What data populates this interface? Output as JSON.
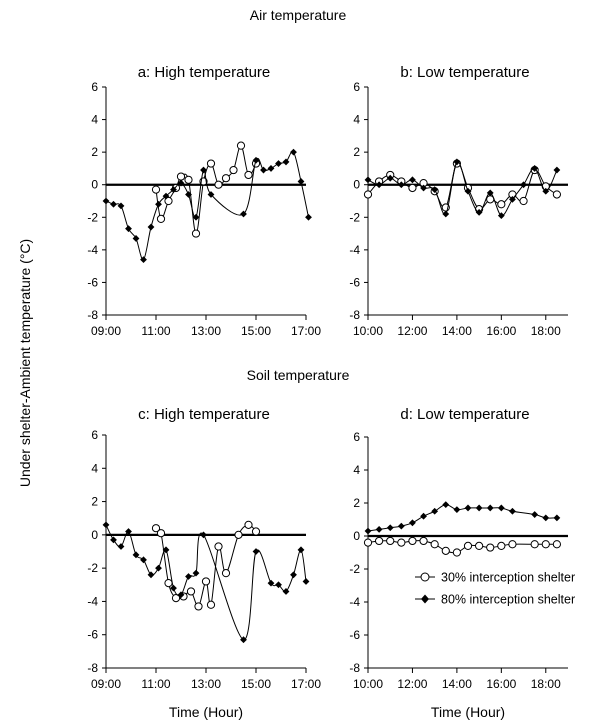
{
  "figure": {
    "section_titles": [
      "Air temperature",
      "Soil temperature"
    ],
    "ylabel": "Under shelter-Ambient temperature (°C)",
    "xlabel": "Time (Hour)"
  },
  "legend": {
    "entries": [
      {
        "label": "30% interception shelter",
        "marker": "open-circle"
      },
      {
        "label": "80% interception shelter",
        "marker": "filled-diamond"
      }
    ]
  },
  "chart_data": [
    {
      "type": "line",
      "title": "a: High temperature",
      "ylim": [
        -8,
        6
      ],
      "yticks": [
        6,
        4,
        2,
        0,
        -2,
        -4,
        -6,
        -8
      ],
      "xlim": [
        9,
        17
      ],
      "xticks": [
        "09:00",
        "11:00",
        "13:00",
        "15:00",
        "17:00"
      ],
      "series": [
        {
          "name": "30% interception shelter",
          "marker": "open-circle",
          "x": [
            11.0,
            11.2,
            11.5,
            11.8,
            12.0,
            12.3,
            12.6,
            12.9,
            13.2,
            13.5,
            13.8,
            14.1,
            14.4,
            14.7,
            15.0
          ],
          "y": [
            -0.3,
            -2.1,
            -1.0,
            -0.2,
            0.5,
            0.3,
            -3.0,
            0.2,
            1.3,
            0.0,
            0.4,
            0.9,
            2.4,
            0.6,
            1.3
          ]
        },
        {
          "name": "80% interception shelter",
          "marker": "filled-diamond",
          "x": [
            9.0,
            9.3,
            9.6,
            9.9,
            10.2,
            10.5,
            10.8,
            11.1,
            11.4,
            11.7,
            12.0,
            12.3,
            12.6,
            12.9,
            13.2,
            14.5,
            15.0,
            15.3,
            15.6,
            15.9,
            16.2,
            16.5,
            16.8,
            17.1
          ],
          "y": [
            -1.0,
            -1.2,
            -1.3,
            -2.7,
            -3.3,
            -4.6,
            -2.6,
            -1.2,
            -0.7,
            -0.3,
            0.1,
            -0.6,
            -2.0,
            0.9,
            -0.6,
            -1.8,
            1.5,
            0.9,
            1.0,
            1.3,
            1.4,
            2.0,
            0.2,
            -2.0
          ]
        }
      ]
    },
    {
      "type": "line",
      "title": "b: Low temperature",
      "ylim": [
        -8,
        6
      ],
      "yticks": [
        6,
        4,
        2,
        0,
        -2,
        -4,
        -6,
        -8
      ],
      "xlim": [
        10,
        19
      ],
      "xticks": [
        "10:00",
        "12:00",
        "14:00",
        "16:00",
        "18:00"
      ],
      "series": [
        {
          "name": "30% interception shelter",
          "marker": "open-circle",
          "x": [
            10.0,
            10.5,
            11.0,
            11.5,
            12.0,
            12.5,
            13.0,
            13.5,
            14.0,
            14.5,
            15.0,
            15.5,
            16.0,
            16.5,
            17.0,
            17.5,
            18.0,
            18.5
          ],
          "y": [
            -0.6,
            0.2,
            0.6,
            0.2,
            -0.2,
            0.1,
            -0.4,
            -1.4,
            1.3,
            -0.2,
            -1.5,
            -0.9,
            -1.2,
            -0.6,
            -1.0,
            0.9,
            -0.1,
            -0.6
          ]
        },
        {
          "name": "80% interception shelter",
          "marker": "filled-diamond",
          "x": [
            10.0,
            10.5,
            11.0,
            11.5,
            12.0,
            12.5,
            13.0,
            13.5,
            14.0,
            14.5,
            15.0,
            15.5,
            16.0,
            16.5,
            17.0,
            17.5,
            18.0,
            18.5
          ],
          "y": [
            0.3,
            0.0,
            0.4,
            0.0,
            0.3,
            -0.2,
            -0.3,
            -1.8,
            1.4,
            -0.4,
            -1.7,
            -0.5,
            -1.9,
            -0.9,
            0.0,
            1.0,
            -0.4,
            0.9
          ]
        }
      ]
    },
    {
      "type": "line",
      "title": "c: High temperature",
      "ylim": [
        -8,
        6
      ],
      "yticks": [
        6,
        4,
        2,
        0,
        -2,
        -4,
        -6,
        -8
      ],
      "xlim": [
        9,
        17
      ],
      "xticks": [
        "09:00",
        "11:00",
        "13:00",
        "15:00",
        "17:00"
      ],
      "series": [
        {
          "name": "30% interception shelter",
          "marker": "open-circle",
          "x": [
            11.0,
            11.2,
            11.5,
            11.8,
            12.1,
            12.4,
            12.7,
            13.0,
            13.2,
            13.5,
            13.8,
            14.3,
            14.7,
            15.0
          ],
          "y": [
            0.4,
            0.1,
            -2.9,
            -3.8,
            -3.7,
            -3.4,
            -4.3,
            -2.8,
            -4.2,
            -0.7,
            -2.3,
            0.0,
            0.6,
            0.2
          ]
        },
        {
          "name": "80% interception shelter",
          "marker": "filled-diamond",
          "x": [
            9.0,
            9.3,
            9.6,
            9.9,
            10.2,
            10.5,
            10.8,
            11.1,
            11.4,
            11.7,
            12.0,
            12.3,
            12.6,
            12.9,
            14.5,
            15.0,
            15.6,
            15.9,
            16.2,
            16.5,
            16.8,
            17.0
          ],
          "y": [
            0.6,
            -0.3,
            -0.7,
            0.2,
            -1.2,
            -1.5,
            -2.4,
            -2.0,
            -0.9,
            -3.2,
            -3.6,
            -2.5,
            -2.3,
            0.0,
            -6.3,
            -1.0,
            -2.9,
            -3.0,
            -3.4,
            -2.4,
            -0.9,
            -2.8
          ]
        }
      ]
    },
    {
      "type": "line",
      "title": "d: Low temperature",
      "ylim": [
        -8,
        6
      ],
      "yticks": [
        6,
        4,
        2,
        0,
        -2,
        -4,
        -6,
        -8
      ],
      "xlim": [
        10,
        19
      ],
      "xticks": [
        "10:00",
        "12:00",
        "14:00",
        "16:00",
        "18:00"
      ],
      "series": [
        {
          "name": "30% interception shelter",
          "marker": "open-circle",
          "x": [
            10.0,
            10.5,
            11.0,
            11.5,
            12.0,
            12.5,
            13.0,
            13.5,
            14.0,
            14.5,
            15.0,
            15.5,
            16.0,
            16.5,
            17.5,
            18.0,
            18.5
          ],
          "y": [
            -0.4,
            -0.3,
            -0.3,
            -0.4,
            -0.3,
            -0.3,
            -0.5,
            -0.9,
            -1.0,
            -0.6,
            -0.6,
            -0.7,
            -0.6,
            -0.5,
            -0.5,
            -0.5,
            -0.5
          ]
        },
        {
          "name": "80% interception shelter",
          "marker": "filled-diamond",
          "x": [
            10.0,
            10.5,
            11.0,
            11.5,
            12.0,
            12.5,
            13.0,
            13.5,
            14.0,
            14.5,
            15.0,
            15.5,
            16.0,
            16.5,
            17.5,
            18.0,
            18.5
          ],
          "y": [
            0.3,
            0.4,
            0.5,
            0.6,
            0.8,
            1.2,
            1.5,
            1.9,
            1.6,
            1.7,
            1.7,
            1.7,
            1.7,
            1.5,
            1.3,
            1.1,
            1.1
          ]
        }
      ]
    }
  ]
}
